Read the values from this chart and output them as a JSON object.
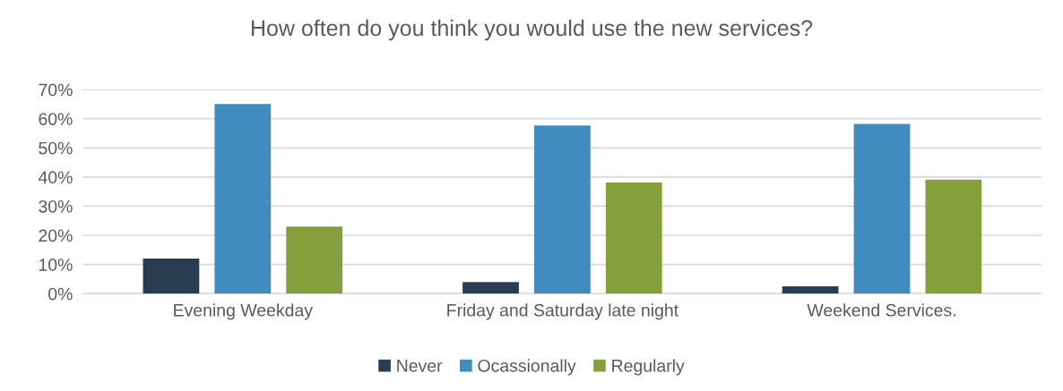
{
  "chart_data": {
    "type": "bar",
    "title": "How often do you think you would use the new services?",
    "categories": [
      "Evening Weekday",
      "Friday and Saturday late night",
      "Weekend Services."
    ],
    "series": [
      {
        "name": "Never",
        "color": "#283d52",
        "values": [
          12,
          4,
          2.5
        ]
      },
      {
        "name": "Ocassionally",
        "color": "#418cbf",
        "values": [
          65,
          57.7,
          58.2
        ]
      },
      {
        "name": "Regularly",
        "color": "#869f3d",
        "values": [
          23,
          38.1,
          39.1
        ]
      }
    ],
    "ylim": [
      0,
      70
    ],
    "yticks": [
      {
        "value": 0,
        "label": "0%"
      },
      {
        "value": 10,
        "label": "10%"
      },
      {
        "value": 20,
        "label": "20%"
      },
      {
        "value": 30,
        "label": "30%"
      },
      {
        "value": 40,
        "label": "40%"
      },
      {
        "value": 50,
        "label": "50%"
      },
      {
        "value": 60,
        "label": "60%"
      },
      {
        "value": 70,
        "label": "70%"
      }
    ],
    "grid": "y",
    "legend": "bottom"
  }
}
